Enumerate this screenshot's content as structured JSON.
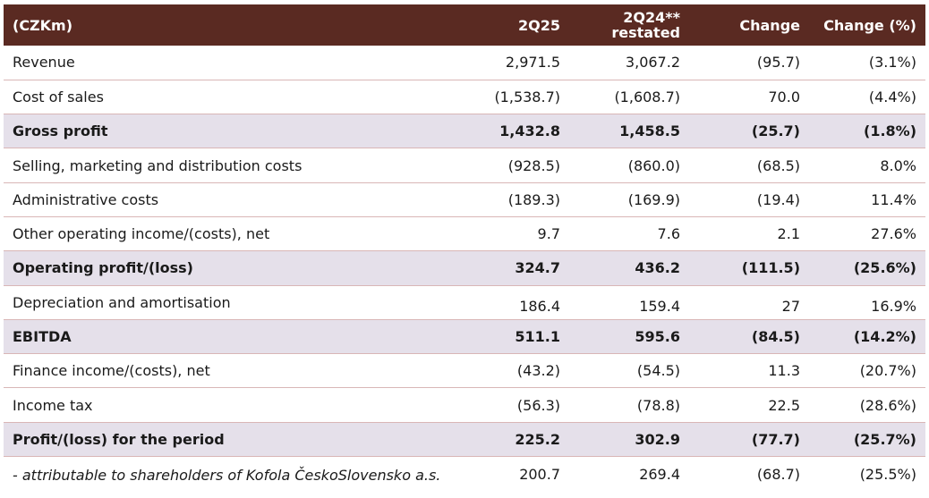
{
  "header": {
    "label": "(CZKm)",
    "col1": "2Q25",
    "col2_line1": "2Q24**",
    "col2_line2": "restated",
    "col3": "Change",
    "col4": "Change (%)"
  },
  "rows": [
    {
      "label": "Revenue",
      "v1": "2,971.5",
      "v2": "3,067.2",
      "v3": "(95.7)",
      "v4": "(3.1%)"
    },
    {
      "label": "Cost of sales",
      "v1": "(1,538.7)",
      "v2": "(1,608.7)",
      "v3": "70.0",
      "v4": "(4.4%)"
    },
    {
      "label": "Gross profit",
      "v1": "1,432.8",
      "v2": "1,458.5",
      "v3": "(25.7)",
      "v4": "(1.8%)"
    },
    {
      "label": "Selling, marketing and distribution costs",
      "v1": "(928.5)",
      "v2": "(860.0)",
      "v3": "(68.5)",
      "v4": "8.0%"
    },
    {
      "label": "Administrative costs",
      "v1": "(189.3)",
      "v2": "(169.9)",
      "v3": "(19.4)",
      "v4": "11.4%"
    },
    {
      "label": "Other operating income/(costs), net",
      "v1": "9.7",
      "v2": "7.6",
      "v3": "2.1",
      "v4": "27.6%"
    },
    {
      "label": "Operating profit/(loss)",
      "v1": "324.7",
      "v2": "436.2",
      "v3": "(111.5)",
      "v4": "(25.6%)"
    },
    {
      "label": "Depreciation and amortisation",
      "v1": "186.4",
      "v2": "159.4",
      "v3": "27",
      "v4": "16.9%"
    },
    {
      "label": "EBITDA",
      "v1": "511.1",
      "v2": "595.6",
      "v3": "(84.5)",
      "v4": "(14.2%)"
    },
    {
      "label": "Finance income/(costs), net",
      "v1": "(43.2)",
      "v2": "(54.5)",
      "v3": "11.3",
      "v4": "(20.7%)"
    },
    {
      "label": "Income tax",
      "v1": "(56.3)",
      "v2": "(78.8)",
      "v3": "22.5",
      "v4": "(28.6%)"
    },
    {
      "label": "Profit/(loss) for the period",
      "v1": "225.2",
      "v2": "302.9",
      "v3": "(77.7)",
      "v4": "(25.7%)"
    },
    {
      "label": "- attributable to shareholders of Kofola ČeskoSlovensko a.s.",
      "v1": "200.7",
      "v2": "269.4",
      "v3": "(68.7)",
      "v4": "(25.5%)"
    }
  ],
  "colors": {
    "header_bg": "#5a2a22",
    "highlight_row_bg": "#e5e0ea",
    "row_divider": "#d9b6b6"
  }
}
